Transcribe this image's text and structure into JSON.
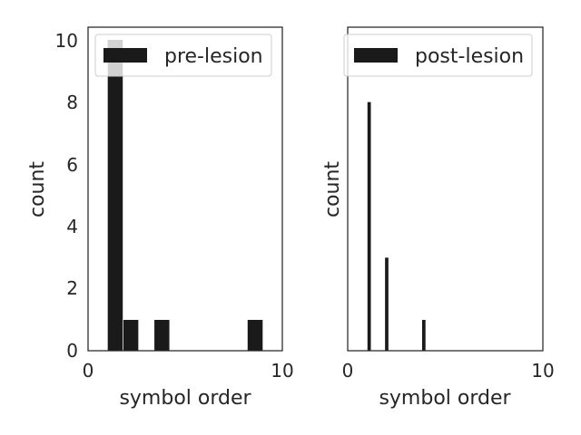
{
  "chart_data": [
    {
      "type": "bar",
      "xlabel": "symbol order",
      "ylabel": "count",
      "xlim": [
        0,
        10
      ],
      "ylim": [
        0,
        10.4
      ],
      "xticks": [
        "0",
        "10"
      ],
      "yticks": [
        "0",
        "2",
        "4",
        "6",
        "8",
        "10"
      ],
      "legend": {
        "label": "pre-lesion",
        "placement": "upper-left"
      },
      "grid": false,
      "bar_color": "#1a1a1a",
      "bars": [
        {
          "x0": 1.0,
          "x1": 1.8,
          "value": 10
        },
        {
          "x0": 1.8,
          "x1": 2.6,
          "value": 1
        },
        {
          "x0": 3.4,
          "x1": 4.2,
          "value": 1
        },
        {
          "x0": 8.2,
          "x1": 9.0,
          "value": 1
        }
      ]
    },
    {
      "type": "bar",
      "xlabel": "symbol order",
      "ylabel": "count",
      "xlim": [
        0,
        10
      ],
      "ylim": [
        0,
        10.4
      ],
      "xticks": [
        "0",
        "10"
      ],
      "yticks": [],
      "legend": {
        "label": "post-lesion",
        "placement": "upper-left"
      },
      "grid": false,
      "bar_color": "#1a1a1a",
      "bars": [
        {
          "x0": 1.0,
          "x1": 1.2,
          "value": 8
        },
        {
          "x0": 1.9,
          "x1": 2.1,
          "value": 3
        },
        {
          "x0": 3.8,
          "x1": 4.0,
          "value": 1
        }
      ]
    }
  ]
}
